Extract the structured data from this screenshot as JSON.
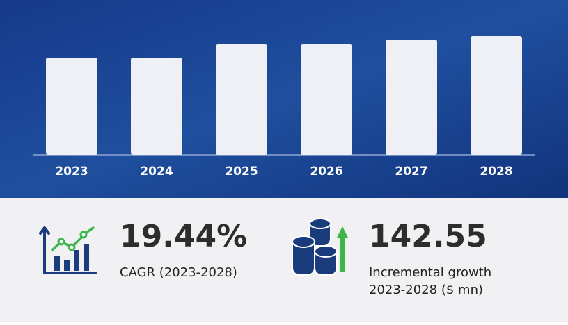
{
  "chart_data": {
    "type": "bar",
    "categories": [
      "2023",
      "2024",
      "2025",
      "2026",
      "2027",
      "2028"
    ],
    "values": [
      140,
      140,
      159,
      159,
      166,
      171
    ],
    "color": "#eef0f6"
  },
  "stats": [
    {
      "value": "19.44%",
      "label": [
        "CAGR (2023-2028)"
      ]
    },
    {
      "value": "142.55",
      "label": [
        "Incremental growth",
        "2023-2028 ($ mn)"
      ]
    }
  ]
}
